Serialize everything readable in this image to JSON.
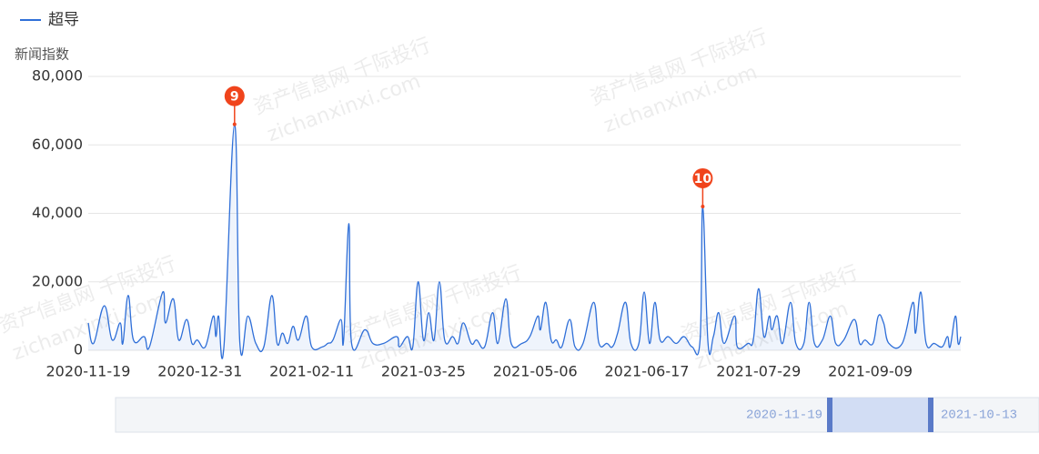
{
  "chart_data": {
    "type": "line",
    "y_axis_label": "新闻指数",
    "xlim": [
      "2020-11-19",
      "2021-10-13"
    ],
    "xticks": [
      "2020-11-19",
      "2020-12-31",
      "2021-02-11",
      "2021-03-25",
      "2021-05-06",
      "2021-06-17",
      "2021-07-29",
      "2021-09-09"
    ],
    "ylim": [
      0,
      80000
    ],
    "yticks": [
      0,
      {
        "value": 20000,
        "label": "20,000"
      },
      {
        "value": 40000,
        "label": "40,000"
      },
      {
        "value": 60000,
        "label": "60,000"
      },
      {
        "value": 80000,
        "label": "80,000"
      }
    ],
    "grid": true,
    "legend": "top-left",
    "area": true,
    "series": [
      {
        "name": "超导",
        "color": "#2f6fd8",
        "x": [
          "2020-11-19",
          "2020-11-21",
          "2020-11-25",
          "2020-11-28",
          "2020-12-01",
          "2020-12-02",
          "2020-12-04",
          "2020-12-06",
          "2020-12-10",
          "2020-12-12",
          "2020-12-17",
          "2020-12-18",
          "2020-12-21",
          "2020-12-23",
          "2020-12-26",
          "2020-12-28",
          "2020-12-30",
          "2021-01-02",
          "2021-01-05",
          "2021-01-06",
          "2021-01-07",
          "2021-01-09",
          "2021-01-13",
          "2021-01-15",
          "2021-01-18",
          "2021-01-21",
          "2021-01-24",
          "2021-01-27",
          "2021-01-29",
          "2021-01-31",
          "2021-02-02",
          "2021-02-04",
          "2021-02-06",
          "2021-02-09",
          "2021-02-11",
          "2021-02-15",
          "2021-02-17",
          "2021-02-19",
          "2021-02-22",
          "2021-02-23",
          "2021-02-25",
          "2021-02-26",
          "2021-03-03",
          "2021-03-06",
          "2021-03-10",
          "2021-03-15",
          "2021-03-16",
          "2021-03-19",
          "2021-03-21",
          "2021-03-23",
          "2021-03-25",
          "2021-03-27",
          "2021-03-29",
          "2021-03-31",
          "2021-04-02",
          "2021-04-05",
          "2021-04-07",
          "2021-04-09",
          "2021-04-12",
          "2021-04-14",
          "2021-04-17",
          "2021-04-20",
          "2021-04-22",
          "2021-04-25",
          "2021-04-27",
          "2021-05-01",
          "2021-05-04",
          "2021-05-07",
          "2021-05-08",
          "2021-05-10",
          "2021-05-12",
          "2021-05-14",
          "2021-05-16",
          "2021-05-19",
          "2021-05-21",
          "2021-05-24",
          "2021-05-28",
          "2021-05-30",
          "2021-06-02",
          "2021-06-04",
          "2021-06-06",
          "2021-06-09",
          "2021-06-11",
          "2021-06-14",
          "2021-06-16",
          "2021-06-18",
          "2021-06-20",
          "2021-06-22",
          "2021-06-25",
          "2021-06-28",
          "2021-07-01",
          "2021-07-04",
          "2021-07-07",
          "2021-07-08",
          "2021-07-10",
          "2021-07-12",
          "2021-07-14",
          "2021-07-16",
          "2021-07-20",
          "2021-07-21",
          "2021-07-25",
          "2021-07-27",
          "2021-07-29",
          "2021-07-31",
          "2021-08-02",
          "2021-08-03",
          "2021-08-05",
          "2021-08-07",
          "2021-08-10",
          "2021-08-12",
          "2021-08-15",
          "2021-08-17",
          "2021-08-19",
          "2021-08-22",
          "2021-08-25",
          "2021-08-27",
          "2021-08-30",
          "2021-09-03",
          "2021-09-05",
          "2021-09-07",
          "2021-09-10",
          "2021-09-12",
          "2021-09-14",
          "2021-09-16",
          "2021-09-21",
          "2021-09-25",
          "2021-09-26",
          "2021-09-28",
          "2021-09-30",
          "2021-10-03",
          "2021-10-06",
          "2021-10-08",
          "2021-10-09",
          "2021-10-11",
          "2021-10-12",
          "2021-10-13"
        ],
        "values": [
          8000,
          2000,
          13000,
          3000,
          8000,
          2000,
          16000,
          3000,
          4000,
          1000,
          17000,
          8000,
          15000,
          3000,
          9000,
          2000,
          3000,
          1000,
          10000,
          4000,
          10000,
          1000,
          66000,
          2000,
          10000,
          2000,
          1000,
          16000,
          2000,
          5000,
          2000,
          7000,
          3000,
          10000,
          1000,
          1000,
          2000,
          3000,
          9000,
          3000,
          37000,
          2000,
          6000,
          2000,
          2000,
          4000,
          1000,
          4000,
          1000,
          20000,
          3000,
          11000,
          3000,
          20000,
          3000,
          4000,
          2000,
          8000,
          2000,
          3000,
          1000,
          11000,
          2000,
          15000,
          2000,
          2000,
          4000,
          10000,
          6000,
          14000,
          3000,
          3000,
          1000,
          9000,
          1000,
          2000,
          14000,
          2000,
          2000,
          1000,
          5000,
          14000,
          2000,
          2000,
          17000,
          2000,
          14000,
          3000,
          4000,
          2000,
          4000,
          1000,
          3000,
          42000,
          2000,
          4000,
          11000,
          2000,
          10000,
          1000,
          2000,
          3000,
          18000,
          4000,
          10000,
          6000,
          10000,
          2000,
          14000,
          2000,
          2000,
          14000,
          2000,
          3000,
          10000,
          2000,
          3000,
          9000,
          2000,
          3000,
          2000,
          10000,
          8000,
          2000,
          2000,
          14000,
          5000,
          17000,
          2000,
          2000,
          1000,
          4000,
          1000,
          10000,
          2000,
          4000
        ]
      }
    ],
    "annotations": [
      {
        "x": "2021-01-13",
        "label": "9",
        "color": "#f0441c"
      },
      {
        "x": "2021-07-08",
        "label": "10",
        "color": "#f0441c"
      }
    ],
    "zoom": {
      "start": "2020-11-19",
      "end": "2021-10-13"
    }
  },
  "watermark": [
    "资产信息网 千际投行",
    "zichanxinxi.com"
  ]
}
